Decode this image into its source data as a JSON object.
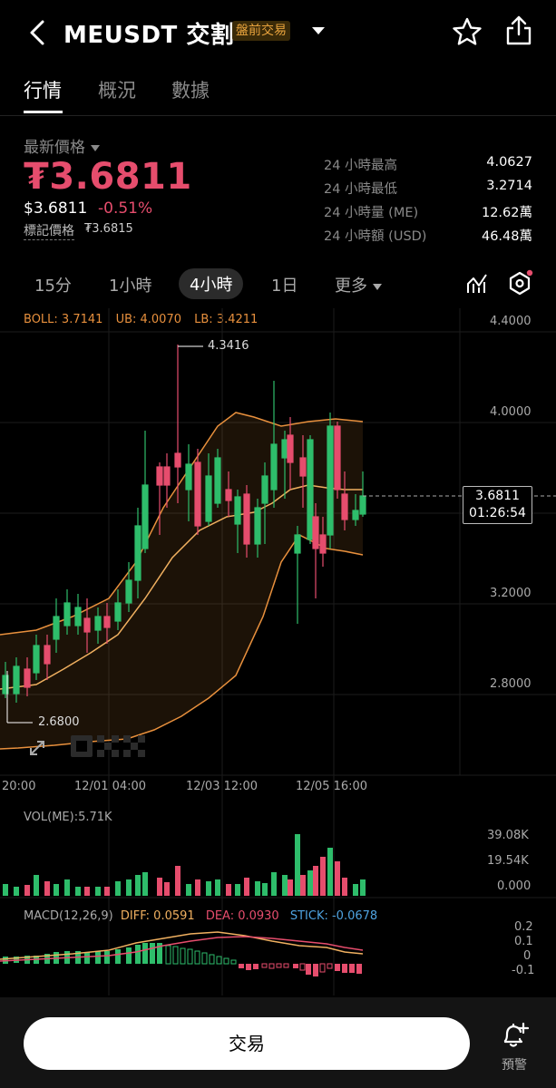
{
  "header": {
    "title": "MEUSDT 交割",
    "badge": "盤前交易"
  },
  "tabs": [
    {
      "label": "行情",
      "active": true
    },
    {
      "label": "概況",
      "active": false
    },
    {
      "label": "數據",
      "active": false
    }
  ],
  "price": {
    "label": "最新價格",
    "main": "₮3.6811",
    "usd": "$3.6811",
    "change": "-0.51%",
    "mark_label": "標記價格",
    "mark_value": "₮3.6815"
  },
  "stats": [
    {
      "label": "24 小時最高",
      "value": "4.0627"
    },
    {
      "label": "24 小時最低",
      "value": "3.2714"
    },
    {
      "label": "24 小時量 (ME)",
      "value": "12.62萬"
    },
    {
      "label": "24 小時額 (USD)",
      "value": "46.48萬"
    }
  ],
  "intervals": [
    {
      "label": "15分",
      "active": false
    },
    {
      "label": "1小時",
      "active": false
    },
    {
      "label": "4小時",
      "active": true
    },
    {
      "label": "1日",
      "active": false
    },
    {
      "label": "更多",
      "active": false
    }
  ],
  "boll": {
    "boll": "BOLL: 3.7141",
    "ub": "UB: 4.0070",
    "lb": "LB: 3.4211"
  },
  "price_axis": [
    "4.4000",
    "4.0000",
    "3.2000",
    "2.8000"
  ],
  "current_tag": {
    "price": "3.6811",
    "countdown": "01:26:54"
  },
  "high_marker": "4.3416",
  "low_marker": "2.6800",
  "time_axis": [
    "20:00",
    "12/01 04:00",
    "12/03 12:00",
    "12/05 16:00"
  ],
  "volume": {
    "label": "VOL(ME):5.71K",
    "axis": [
      "39.08K",
      "19.54K",
      "0.000"
    ]
  },
  "macd": {
    "label": "MACD(12,26,9)",
    "diff": "DIFF: 0.0591",
    "dea": "DEA: 0.0930",
    "stick": "STICK: -0.0678",
    "axis": [
      "0.2",
      "0.1",
      "0",
      "-0.1"
    ]
  },
  "bottom": {
    "trade": "交易",
    "alert": "預警"
  },
  "colors": {
    "up": "#2ebd6b",
    "down": "#e64d6d",
    "boll": "#e8903d",
    "dea": "#e64d6d",
    "stick": "#4fa3e0"
  }
}
